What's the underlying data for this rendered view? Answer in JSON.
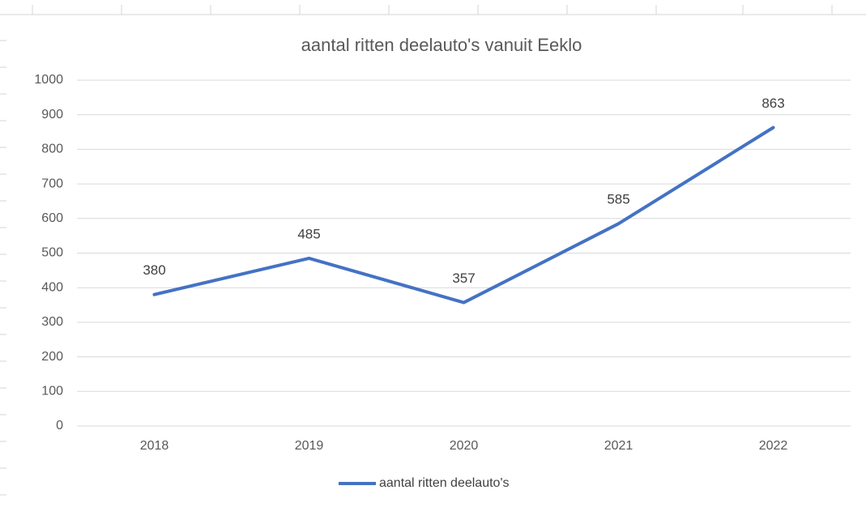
{
  "chart_data": {
    "type": "line",
    "title": "aantal ritten deelauto's vanuit Eeklo",
    "categories": [
      "2018",
      "2019",
      "2020",
      "2021",
      "2022"
    ],
    "series": [
      {
        "name": "aantal ritten deelauto's",
        "color": "#4472c4",
        "values": [
          380,
          485,
          357,
          585,
          863
        ]
      }
    ],
    "ylim": [
      0,
      1000
    ],
    "yticks": [
      0,
      100,
      200,
      300,
      400,
      500,
      600,
      700,
      800,
      900,
      1000
    ],
    "grid": true,
    "legend": "bottom"
  }
}
